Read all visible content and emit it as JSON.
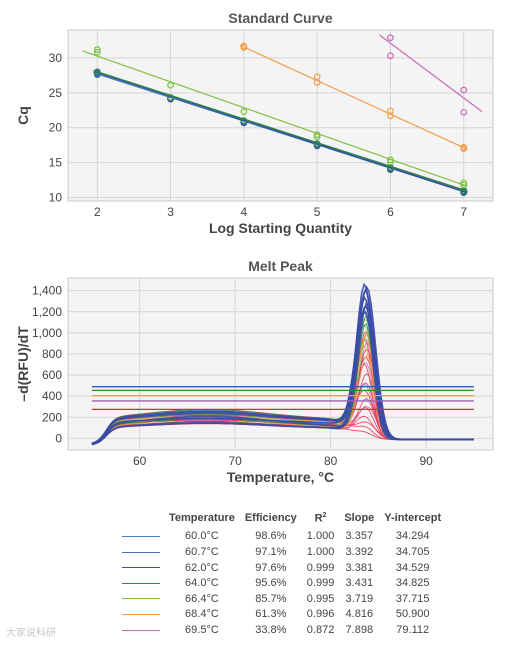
{
  "chart_data": [
    {
      "type": "scatter",
      "title": "Standard Curve",
      "xlabel": "Log Starting Quantity",
      "ylabel": "Cq",
      "xlim": [
        1.6,
        7.4
      ],
      "ylim": [
        9.5,
        34
      ],
      "xticks": [
        2,
        3,
        4,
        5,
        6,
        7
      ],
      "yticks": [
        10,
        15,
        20,
        25,
        30
      ],
      "grid": true,
      "series": [
        {
          "name": "60.0°C",
          "color": "#2e5fa6",
          "points": [
            [
              2,
              27.7
            ],
            [
              2,
              28.0
            ],
            [
              3,
              24.2
            ],
            [
              3,
              24.3
            ],
            [
              4,
              20.8
            ],
            [
              4,
              21.0
            ],
            [
              5,
              17.5
            ],
            [
              5,
              17.7
            ],
            [
              6,
              14.1
            ],
            [
              6,
              14.3
            ],
            [
              7,
              10.8
            ],
            [
              7,
              11.0
            ]
          ],
          "fit": [
            [
              1.95,
              28.0
            ],
            [
              7.05,
              10.8
            ]
          ]
        },
        {
          "name": "60.7°C",
          "color": "#4d7bc0",
          "points": [
            [
              2,
              27.6
            ],
            [
              3,
              24.2
            ],
            [
              4,
              20.9
            ],
            [
              5,
              17.6
            ],
            [
              6,
              14.2
            ],
            [
              7,
              10.9
            ]
          ],
          "fit": [
            [
              1.95,
              27.9
            ],
            [
              7.05,
              10.9
            ]
          ]
        },
        {
          "name": "62.0°C",
          "color": "#3c4fa0",
          "points": [
            [
              2,
              27.8
            ],
            [
              3,
              24.1
            ],
            [
              4,
              20.7
            ],
            [
              5,
              17.4
            ],
            [
              6,
              14.0
            ],
            [
              7,
              10.7
            ]
          ],
          "fit": [
            [
              1.95,
              28.1
            ],
            [
              7.05,
              10.7
            ]
          ]
        },
        {
          "name": "64.0°C",
          "color": "#2d8a3e",
          "points": [
            [
              2,
              27.9
            ],
            [
              3,
              24.3
            ],
            [
              4,
              21.0
            ],
            [
              5,
              17.6
            ],
            [
              6,
              14.2
            ],
            [
              7,
              10.9
            ]
          ],
          "fit": [
            [
              1.95,
              28.2
            ],
            [
              7.05,
              10.9
            ]
          ]
        },
        {
          "name": "66.4°C",
          "color": "#7dc242",
          "points": [
            [
              2,
              30.8
            ],
            [
              2,
              31.2
            ],
            [
              3,
              26.1
            ],
            [
              4,
              22.3
            ],
            [
              5,
              18.7
            ],
            [
              5,
              19.0
            ],
            [
              6,
              15.1
            ],
            [
              6,
              15.4
            ],
            [
              7,
              11.8
            ],
            [
              7,
              12.1
            ]
          ],
          "fit": [
            [
              1.8,
              31.0
            ],
            [
              7.05,
              11.6
            ]
          ]
        },
        {
          "name": "68.4°C",
          "color": "#f39c4a",
          "points": [
            [
              4,
              31.5
            ],
            [
              4,
              31.7
            ],
            [
              5,
              26.5
            ],
            [
              5,
              27.3
            ],
            [
              6,
              21.7
            ],
            [
              6,
              22.4
            ],
            [
              7,
              17.0
            ],
            [
              7,
              17.2
            ]
          ],
          "fit": [
            [
              3.95,
              31.8
            ],
            [
              7.05,
              16.9
            ]
          ]
        },
        {
          "name": "69.5°C",
          "color": "#c86bb5",
          "points": [
            [
              6,
              30.3
            ],
            [
              6,
              32.9
            ],
            [
              7,
              22.2
            ],
            [
              7,
              25.4
            ]
          ],
          "fit": [
            [
              5.85,
              33.3
            ],
            [
              7.25,
              22.3
            ]
          ]
        }
      ]
    },
    {
      "type": "line",
      "title": "Melt Peak",
      "xlabel": "Temperature, °C",
      "ylabel": "–d(RFU)/dT",
      "xlim": [
        52.5,
        97
      ],
      "ylim": [
        -110,
        1520
      ],
      "xticks": [
        60,
        70,
        80,
        90
      ],
      "yticks": [
        0,
        200,
        400,
        600,
        800,
        1000,
        1200,
        1400
      ],
      "ytick_labels": [
        "0",
        "200",
        "400",
        "600",
        "800",
        "1,000",
        "1,200",
        "1,400"
      ],
      "grid": true,
      "x_range": [
        55,
        95
      ],
      "peak_temperature": 83.8,
      "threshold_lines": [
        {
          "y": 490,
          "color": "#2e5fa6"
        },
        {
          "y": 455,
          "color": "#2d8a3e"
        },
        {
          "y": 405,
          "color": "#f39c4a"
        },
        {
          "y": 355,
          "color": "#9b5fb0"
        },
        {
          "y": 275,
          "color": "#d62f3a"
        }
      ],
      "curve_groups": [
        {
          "color": "#3b4aa8",
          "peaks": [
            1450,
            1420,
            1380,
            1330,
            1280,
            1230,
            1180
          ]
        },
        {
          "color": "#2d8a3e",
          "peaks": [
            1250,
            1200,
            1150,
            1080
          ]
        },
        {
          "color": "#7dc242",
          "peaks": [
            1120,
            1050,
            980
          ]
        },
        {
          "color": "#f39c4a",
          "peaks": [
            1000,
            930,
            860,
            780
          ]
        },
        {
          "color": "#e8365d",
          "peaks": [
            1000,
            920,
            840,
            760,
            680,
            600,
            520,
            440,
            360,
            280,
            200,
            140,
            90,
            50
          ]
        },
        {
          "color": "#b07cc6",
          "peaks": [
            900,
            700,
            500,
            300
          ]
        }
      ]
    }
  ],
  "legend_table": {
    "headers": [
      "Temperature",
      "Efficiency",
      "R",
      "Slope",
      "Y-intercept"
    ],
    "r_superscript": "2",
    "rows": [
      {
        "color": "#4f7cc7",
        "temperature": "60.0°C",
        "efficiency": "98.6%",
        "r2": "1.000",
        "slope": "3.357",
        "intercept": "34.294"
      },
      {
        "color": "#4a6db8",
        "temperature": "60.7°C",
        "efficiency": "97.1%",
        "r2": "1.000",
        "slope": "3.392",
        "intercept": "34.705"
      },
      {
        "color": "#3c4fa0",
        "temperature": "62.0°C",
        "efficiency": "97.6%",
        "r2": "0.999",
        "slope": "3.381",
        "intercept": "34.529"
      },
      {
        "color": "#2d8a3e",
        "temperature": "64.0°C",
        "efficiency": "95.6%",
        "r2": "0.999",
        "slope": "3.431",
        "intercept": "34.825"
      },
      {
        "color": "#7dc242",
        "temperature": "66.4°C",
        "efficiency": "85.7%",
        "r2": "0.995",
        "slope": "3.719",
        "intercept": "37.715"
      },
      {
        "color": "#f39c4a",
        "temperature": "68.4°C",
        "efficiency": "61.3%",
        "r2": "0.996",
        "slope": "4.816",
        "intercept": "50.900"
      },
      {
        "color": "#c86bb5",
        "temperature": "69.5°C",
        "efficiency": "33.8%",
        "r2": "0.872",
        "slope": "7.898",
        "intercept": "79.112"
      }
    ]
  },
  "watermark": "大家说科研"
}
